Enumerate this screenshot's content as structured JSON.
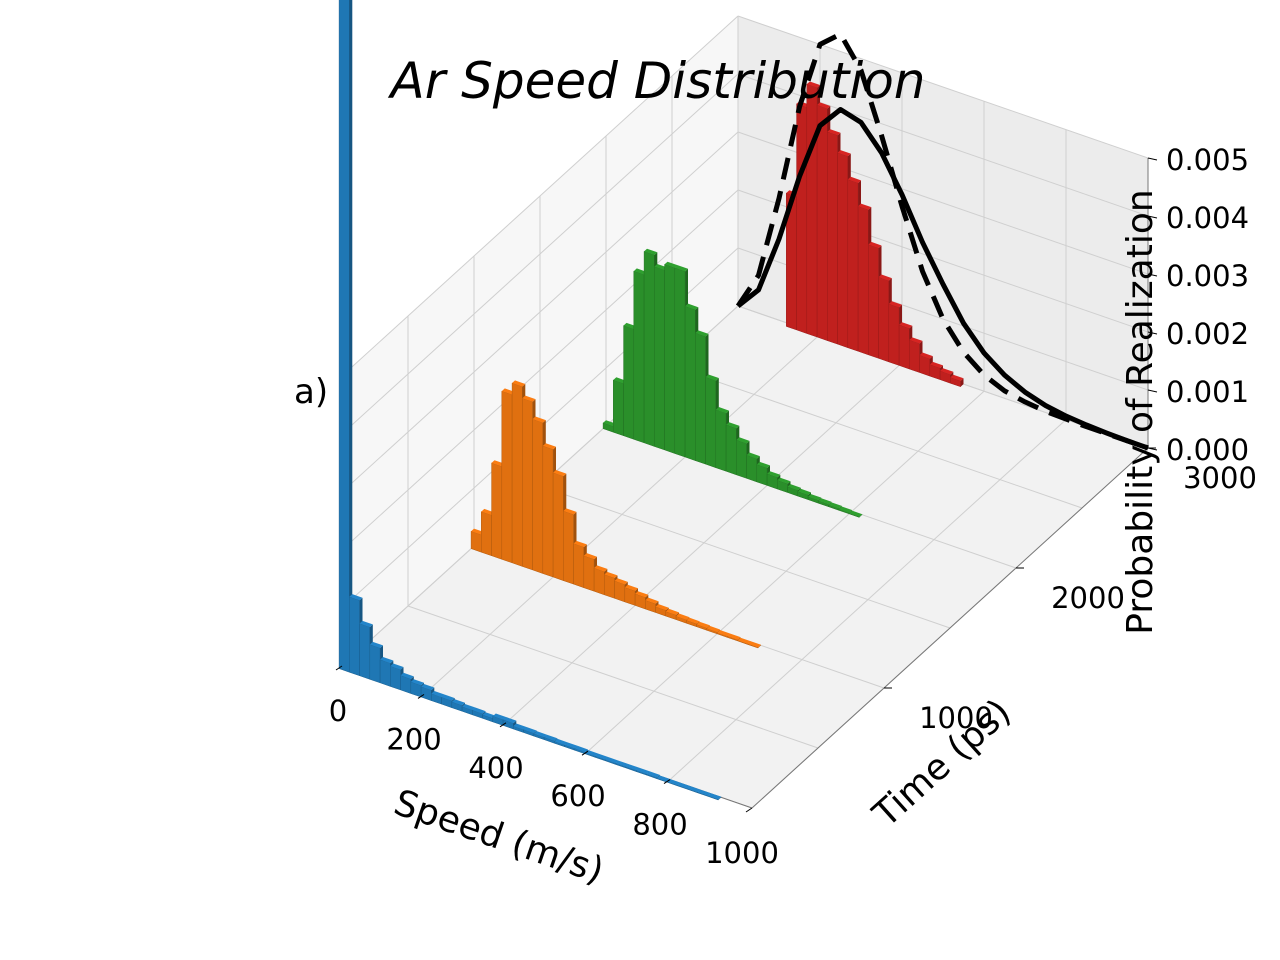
{
  "chart_data": {
    "type": "bar",
    "projection": "3d",
    "title": "Ar Speed Distribution",
    "panel_label": "a)",
    "xlabel": "Speed (m/s)",
    "ylabel": "Time (ps)",
    "zlabel": "Probability of Realization",
    "xlim": [
      0,
      1000
    ],
    "ylim": [
      0,
      3000
    ],
    "zlim": [
      0,
      0.005
    ],
    "x_ticks": [
      "0",
      "200",
      "400",
      "600",
      "800",
      "1000"
    ],
    "y_ticks": [
      "1000",
      "2000",
      "3000"
    ],
    "z_ticks": [
      "0.000",
      "0.001",
      "0.002",
      "0.003",
      "0.004",
      "0.005"
    ],
    "grid": true,
    "bin_width": 25,
    "colors": {
      "t0": "#1f77b4",
      "t1000": "#e07010",
      "t2000": "#2a8f2a",
      "t3000": "#c0201e",
      "fit": "#000000"
    },
    "series": [
      {
        "time": 0,
        "color_key": "t0",
        "bin_start": 0,
        "values": [
          0.0185,
          0.0013,
          0.0009,
          0.0006,
          0.0004,
          0.00035,
          0.00025,
          0.0002,
          0.00018,
          0.00012,
          0.00012,
          0.0001,
          8e-05,
          8e-05,
          6e-05,
          0.0001,
          0.0001,
          5e-05,
          5e-05,
          4e-05,
          4e-05,
          3e-05,
          3e-05,
          3e-05,
          2e-05,
          2e-05,
          2e-05,
          2e-05,
          2e-05,
          2e-05,
          2e-05,
          1e-05,
          1e-05,
          1e-05,
          1e-05,
          1e-05,
          1e-05
        ]
      },
      {
        "time": 1000,
        "color_key": "t1000",
        "bin_start": 0,
        "values": [
          0.0003,
          0.0007,
          0.0016,
          0.0029,
          0.0031,
          0.0029,
          0.0026,
          0.0022,
          0.0018,
          0.0012,
          0.0007,
          0.00055,
          0.0004,
          0.00035,
          0.0003,
          0.00025,
          0.0002,
          0.00015,
          0.0001,
          8e-05,
          6e-05,
          5e-05,
          4e-05,
          3e-05,
          2e-05,
          2e-05,
          1e-05,
          1e-05
        ]
      },
      {
        "time": 2000,
        "color_key": "t2000",
        "bin_start": 0,
        "values": [
          0.0001,
          0.0009,
          0.0019,
          0.0029,
          0.0033,
          0.0031,
          0.0032,
          0.0032,
          0.0026,
          0.0022,
          0.0015,
          0.001,
          0.0008,
          0.0006,
          0.0004,
          0.0003,
          0.0002,
          0.00015,
          0.0001,
          8e-05,
          5e-05,
          4e-05,
          3e-05,
          2e-05,
          1e-05
        ]
      },
      {
        "time": 3000,
        "color_key": "t3000",
        "bin_start": 125,
        "values": [
          0.0023,
          0.0039,
          0.0043,
          0.004,
          0.0036,
          0.0033,
          0.0029,
          0.0025,
          0.0019,
          0.0014,
          0.001,
          0.0007,
          0.0005,
          0.0003,
          0.0002,
          0.00015,
          0.0001
        ]
      }
    ],
    "fits": [
      {
        "style": "dashed",
        "time": 3000,
        "x": [
          0,
          50,
          100,
          150,
          200,
          250,
          300,
          350,
          400,
          450,
          500,
          550,
          600,
          650,
          700,
          750,
          800,
          850,
          900,
          950,
          1000
        ],
        "y": [
          0,
          0.00065,
          0.0021,
          0.0038,
          0.005,
          0.0053,
          0.0048,
          0.0038,
          0.0027,
          0.0017,
          0.001,
          0.00055,
          0.00028,
          0.00013,
          6e-05,
          2e-05,
          1e-05,
          0,
          0,
          0,
          0
        ]
      },
      {
        "style": "solid",
        "time": 3000,
        "x": [
          0,
          50,
          100,
          150,
          200,
          250,
          300,
          350,
          400,
          450,
          500,
          550,
          600,
          650,
          700,
          750,
          800,
          850,
          900,
          950,
          1000
        ],
        "y": [
          0,
          0.0004,
          0.0014,
          0.0026,
          0.0036,
          0.004,
          0.0039,
          0.0035,
          0.0029,
          0.0022,
          0.0016,
          0.00105,
          0.00066,
          0.0004,
          0.00023,
          0.00012,
          6e-05,
          3e-05,
          1e-05,
          0,
          0
        ]
      }
    ]
  }
}
